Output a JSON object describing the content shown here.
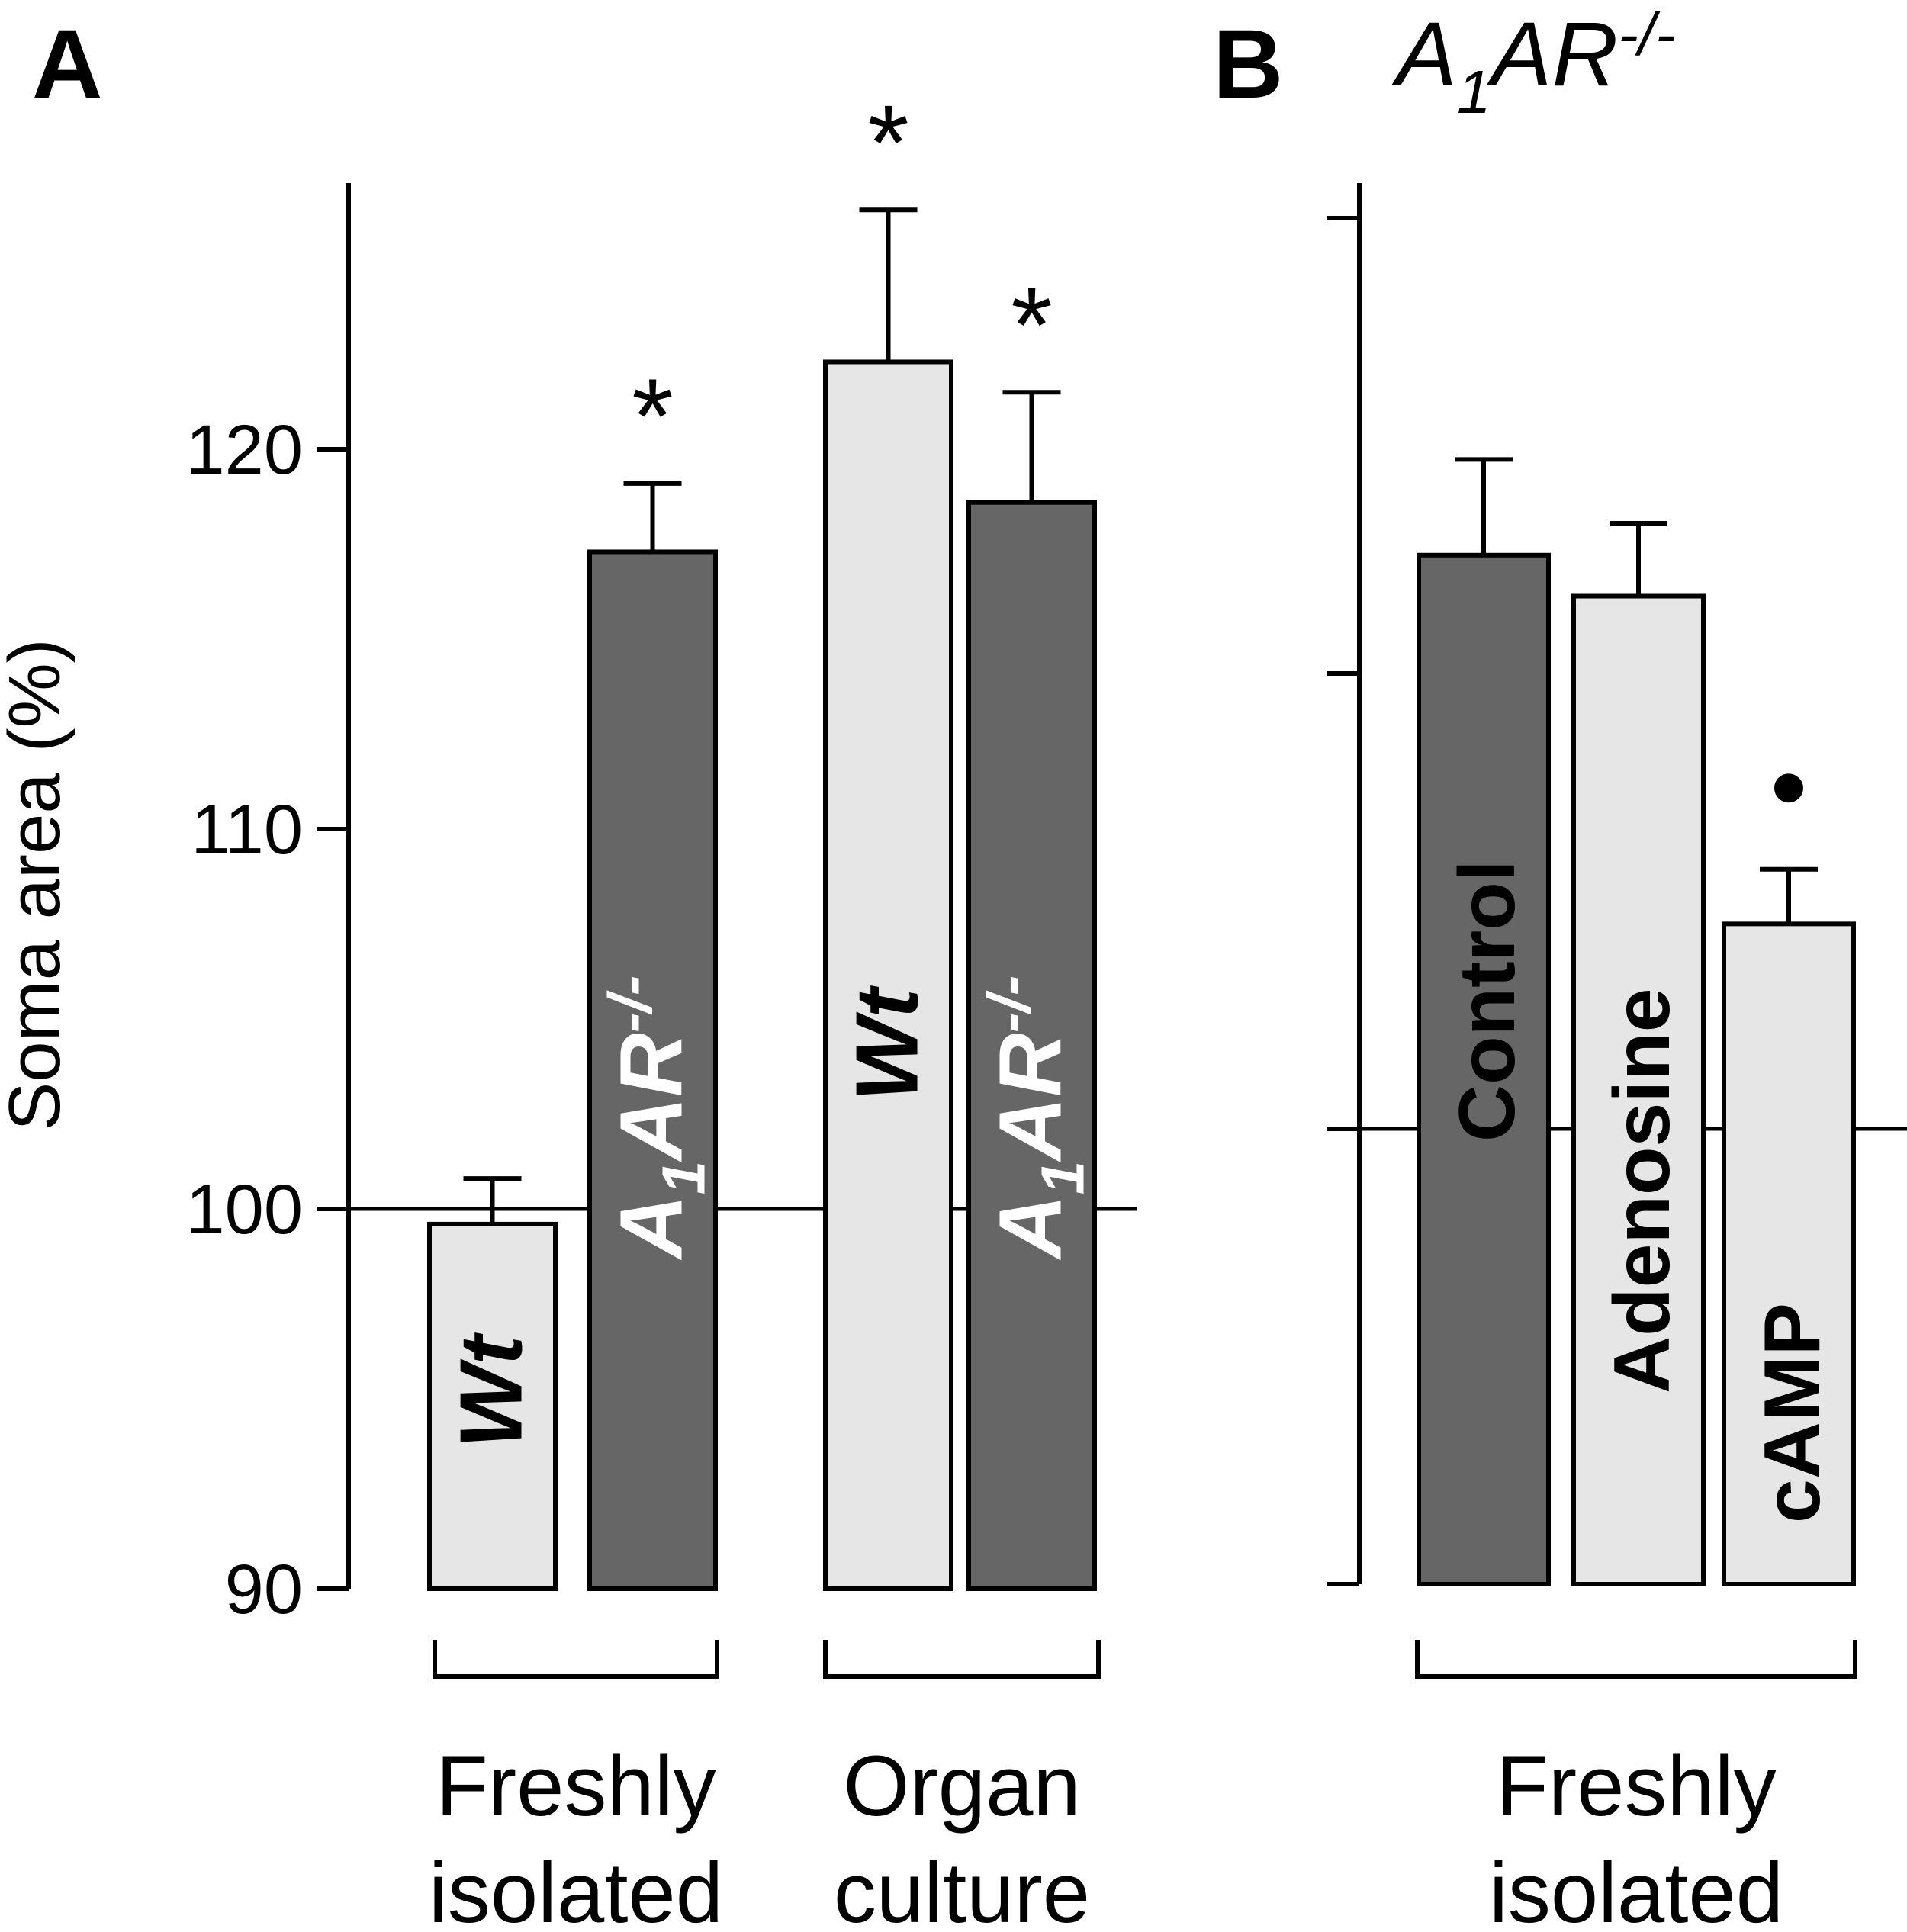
{
  "chart_data": [
    {
      "panel": "A",
      "type": "bar",
      "ylabel": "Soma area (%)",
      "ylim": [
        90,
        127
      ],
      "yticks": [
        90,
        100,
        110,
        120
      ],
      "reference_line": 100,
      "groups": [
        {
          "label_line1": "Freshly",
          "label_line2": "isolated",
          "bars": [
            0,
            1
          ]
        },
        {
          "label_line1": "Organ",
          "label_line2": "culture",
          "bars": [
            2,
            3
          ]
        }
      ],
      "bars": [
        {
          "label": "Wt",
          "label_style": "plain-italic",
          "value": 99.6,
          "error": 1.2,
          "color": "#e6e6e6",
          "text_color": "#000000",
          "annotation": ""
        },
        {
          "label": "A",
          "label_sub": "1",
          "label_rest": "AR",
          "label_sup": "-/-",
          "label_style": "genotype",
          "value": 117.3,
          "error": 1.8,
          "color": "#666666",
          "text_color": "#ffffff",
          "annotation": "*"
        },
        {
          "label": "Wt",
          "label_style": "plain-italic",
          "value": 122.3,
          "error": 4.0,
          "color": "#e6e6e6",
          "text_color": "#000000",
          "annotation": "*"
        },
        {
          "label": "A",
          "label_sub": "1",
          "label_rest": "AR",
          "label_sup": "-/-",
          "label_style": "genotype",
          "value": 118.6,
          "error": 2.9,
          "color": "#666666",
          "text_color": "#ffffff",
          "annotation": "*"
        }
      ]
    },
    {
      "panel": "B",
      "type": "bar",
      "title_main": "A",
      "title_sub": "1",
      "title_rest": "AR",
      "title_sup": "-/-",
      "ylim": [
        90,
        127
      ],
      "yticks": [
        90,
        100,
        110,
        120
      ],
      "reference_line": 100,
      "groups": [
        {
          "label_line1": "Freshly",
          "label_line2": "isolated",
          "bars": [
            0,
            1,
            2
          ]
        }
      ],
      "bars": [
        {
          "label": "Control",
          "value": 112.6,
          "error": 2.1,
          "color": "#666666",
          "text_color": "#ffffff",
          "annotation": ""
        },
        {
          "label": "Adenosine",
          "value": 111.7,
          "error": 1.6,
          "color": "#e6e6e6",
          "text_color": "#000000",
          "annotation": ""
        },
        {
          "label": "cAMP",
          "value": 104.5,
          "error": 1.2,
          "color": "#e6e6e6",
          "text_color": "#000000",
          "annotation": "•"
        }
      ]
    }
  ]
}
